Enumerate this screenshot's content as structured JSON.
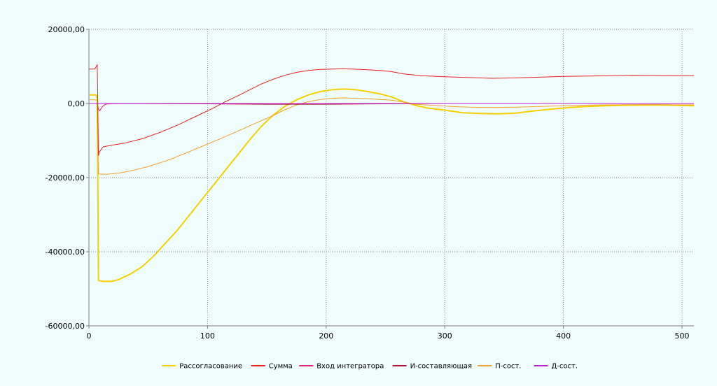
{
  "chart_data": {
    "type": "line",
    "title": "",
    "xlabel": "",
    "ylabel": "",
    "xlim": [
      0,
      510
    ],
    "ylim": [
      -60000,
      20000
    ],
    "x_ticks": [
      0,
      100,
      200,
      300,
      400,
      500
    ],
    "x_tick_labels": [
      "0",
      "100",
      "200",
      "300",
      "400",
      "500"
    ],
    "y_ticks": [
      -60000,
      -40000,
      -20000,
      0,
      20000
    ],
    "y_tick_labels": [
      "-60000,00",
      "-40000,00",
      "-20000,00",
      "0,00",
      "20000,00"
    ],
    "grid": "dotted",
    "legend_position": "bottom",
    "background": "#f0fdfd",
    "series": [
      {
        "name": "Рассогласование",
        "color": "#f5d000",
        "width": 2,
        "points": [
          [
            0,
            2300
          ],
          [
            6,
            2300
          ],
          [
            7,
            1500
          ],
          [
            8,
            -47800
          ],
          [
            12,
            -48000
          ],
          [
            19,
            -48000
          ],
          [
            25,
            -47500
          ],
          [
            35,
            -46000
          ],
          [
            45,
            -44000
          ],
          [
            55,
            -41000
          ],
          [
            65,
            -37500
          ],
          [
            75,
            -34000
          ],
          [
            85,
            -30000
          ],
          [
            95,
            -26000
          ],
          [
            105,
            -22000
          ],
          [
            115,
            -18000
          ],
          [
            125,
            -14000
          ],
          [
            135,
            -10000
          ],
          [
            145,
            -6300
          ],
          [
            155,
            -3200
          ],
          [
            165,
            -800
          ],
          [
            175,
            1000
          ],
          [
            185,
            2300
          ],
          [
            195,
            3200
          ],
          [
            205,
            3700
          ],
          [
            215,
            3900
          ],
          [
            225,
            3700
          ],
          [
            235,
            3200
          ],
          [
            245,
            2600
          ],
          [
            255,
            1800
          ],
          [
            265,
            500
          ],
          [
            275,
            -500
          ],
          [
            285,
            -1200
          ],
          [
            300,
            -1800
          ],
          [
            315,
            -2500
          ],
          [
            330,
            -2700
          ],
          [
            345,
            -2800
          ],
          [
            360,
            -2600
          ],
          [
            375,
            -2000
          ],
          [
            390,
            -1500
          ],
          [
            405,
            -1100
          ],
          [
            420,
            -800
          ],
          [
            435,
            -600
          ],
          [
            450,
            -500
          ],
          [
            465,
            -450
          ],
          [
            480,
            -400
          ],
          [
            495,
            -500
          ],
          [
            510,
            -600
          ]
        ]
      },
      {
        "name": "Сумма",
        "color": "#e82020",
        "width": 1,
        "points": [
          [
            0,
            9300
          ],
          [
            5,
            9300
          ],
          [
            7,
            10500
          ],
          [
            8,
            -14000
          ],
          [
            9,
            -13000
          ],
          [
            12,
            -11700
          ],
          [
            20,
            -11200
          ],
          [
            30,
            -10700
          ],
          [
            45,
            -9500
          ],
          [
            60,
            -7800
          ],
          [
            75,
            -5800
          ],
          [
            90,
            -3500
          ],
          [
            105,
            -1200
          ],
          [
            115,
            500
          ],
          [
            125,
            2000
          ],
          [
            135,
            3600
          ],
          [
            145,
            5200
          ],
          [
            155,
            6500
          ],
          [
            165,
            7600
          ],
          [
            175,
            8400
          ],
          [
            185,
            8900
          ],
          [
            195,
            9200
          ],
          [
            205,
            9300
          ],
          [
            215,
            9350
          ],
          [
            225,
            9250
          ],
          [
            235,
            9100
          ],
          [
            245,
            8900
          ],
          [
            255,
            8600
          ],
          [
            265,
            8000
          ],
          [
            280,
            7500
          ],
          [
            300,
            7200
          ],
          [
            320,
            7000
          ],
          [
            340,
            6800
          ],
          [
            360,
            6900
          ],
          [
            380,
            7100
          ],
          [
            400,
            7300
          ],
          [
            420,
            7400
          ],
          [
            440,
            7500
          ],
          [
            460,
            7600
          ],
          [
            480,
            7550
          ],
          [
            500,
            7500
          ],
          [
            510,
            7500
          ]
        ]
      },
      {
        "name": "Вход интегратора",
        "color": "#e8207a",
        "width": 1,
        "points": [
          [
            0,
            0
          ],
          [
            7,
            0
          ],
          [
            8,
            -1500
          ],
          [
            9,
            -2000
          ],
          [
            11,
            -1000
          ],
          [
            13,
            -400
          ],
          [
            15,
            -150
          ],
          [
            20,
            -50
          ],
          [
            40,
            0
          ],
          [
            510,
            0
          ]
        ]
      },
      {
        "name": "И-составляющая",
        "color": "#b0103a",
        "width": 1,
        "points": [
          [
            0,
            0
          ],
          [
            100,
            -100
          ],
          [
            150,
            -200
          ],
          [
            200,
            -200
          ],
          [
            250,
            -100
          ],
          [
            300,
            0
          ],
          [
            400,
            0
          ],
          [
            510,
            0
          ]
        ]
      },
      {
        "name": "П-сост.",
        "color": "#f0a030",
        "width": 1,
        "points": [
          [
            0,
            1000
          ],
          [
            6,
            1000
          ],
          [
            7,
            700
          ],
          [
            8,
            -19000
          ],
          [
            15,
            -19100
          ],
          [
            25,
            -18800
          ],
          [
            35,
            -18200
          ],
          [
            50,
            -17000
          ],
          [
            65,
            -15500
          ],
          [
            80,
            -13600
          ],
          [
            95,
            -11600
          ],
          [
            110,
            -9600
          ],
          [
            125,
            -7500
          ],
          [
            140,
            -5400
          ],
          [
            155,
            -3300
          ],
          [
            165,
            -1700
          ],
          [
            175,
            -400
          ],
          [
            185,
            500
          ],
          [
            195,
            1100
          ],
          [
            205,
            1400
          ],
          [
            215,
            1500
          ],
          [
            225,
            1400
          ],
          [
            235,
            1300
          ],
          [
            245,
            1100
          ],
          [
            255,
            900
          ],
          [
            265,
            400
          ],
          [
            275,
            -200
          ],
          [
            290,
            -500
          ],
          [
            305,
            -800
          ],
          [
            320,
            -1000
          ],
          [
            340,
            -1100
          ],
          [
            360,
            -1000
          ],
          [
            380,
            -800
          ],
          [
            400,
            -600
          ],
          [
            420,
            -450
          ],
          [
            440,
            -350
          ],
          [
            460,
            -300
          ],
          [
            480,
            -300
          ],
          [
            500,
            -350
          ],
          [
            510,
            -350
          ]
        ]
      },
      {
        "name": "Д-сост.",
        "color": "#c020d0",
        "width": 1,
        "points": [
          [
            0,
            0
          ],
          [
            510,
            0
          ]
        ]
      }
    ]
  }
}
